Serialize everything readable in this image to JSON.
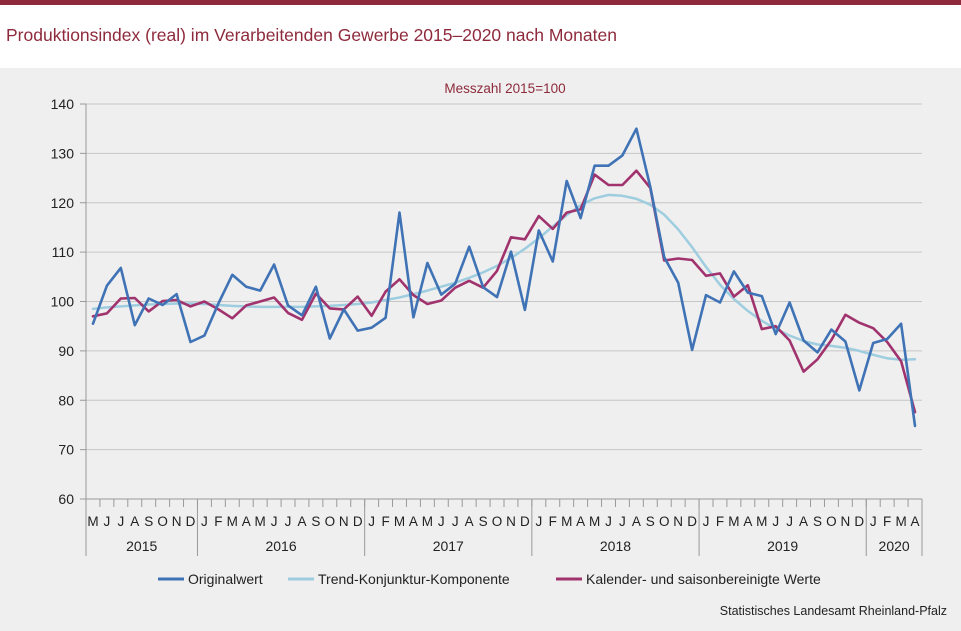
{
  "title": "Produktionsindex (real) im Verarbeitenden Gewerbe 2015–2020 nach Monaten",
  "source": "Statistisches Landesamt Rheinland-Pfalz",
  "colors": {
    "accent": "#8e2a3c",
    "original": "#3f73b5",
    "trend": "#9fcde0",
    "seasonal": "#a0336e"
  },
  "chart_data": {
    "type": "line",
    "subtitle": "Messzahl 2015=100",
    "ylim": [
      60,
      140
    ],
    "yticks": [
      60,
      70,
      80,
      90,
      100,
      110,
      120,
      130,
      140
    ],
    "grid": true,
    "legend": "bottom",
    "month_labels": [
      "M",
      "J",
      "J",
      "A",
      "S",
      "O",
      "N",
      "D",
      "J",
      "F",
      "M",
      "A",
      "M",
      "J",
      "J",
      "A",
      "S",
      "O",
      "N",
      "D",
      "J",
      "F",
      "M",
      "A",
      "M",
      "J",
      "J",
      "A",
      "S",
      "O",
      "N",
      "D",
      "J",
      "F",
      "M",
      "A",
      "M",
      "J",
      "J",
      "A",
      "S",
      "O",
      "N",
      "D",
      "J",
      "F",
      "M",
      "A",
      "M",
      "J",
      "J",
      "A",
      "S",
      "O",
      "N",
      "D",
      "J",
      "F",
      "M",
      "A"
    ],
    "years": [
      {
        "label": "2015",
        "start": 0,
        "count": 8
      },
      {
        "label": "2016",
        "start": 8,
        "count": 12
      },
      {
        "label": "2017",
        "start": 20,
        "count": 12
      },
      {
        "label": "2018",
        "start": 32,
        "count": 12
      },
      {
        "label": "2019",
        "start": 44,
        "count": 12
      },
      {
        "label": "2020",
        "start": 56,
        "count": 4
      }
    ],
    "series": [
      {
        "name": "Originalwert",
        "color": "#3f73b5",
        "values": [
          95.5,
          103.2,
          106.8,
          95.2,
          100.6,
          99.3,
          101.5,
          91.8,
          93.1,
          99.6,
          105.4,
          103.0,
          102.2,
          107.5,
          99.2,
          97.2,
          103.0,
          92.5,
          98.4,
          94.1,
          94.7,
          96.7,
          118.0,
          96.8,
          107.8,
          101.4,
          103.6,
          111.1,
          102.9,
          100.9,
          110.1,
          98.3,
          114.4,
          108.1,
          124.4,
          116.9,
          127.5,
          127.5,
          129.6,
          135.0,
          123.2,
          109.0,
          103.8,
          90.2,
          101.3,
          99.8,
          106.1,
          101.8,
          101.1,
          93.4,
          99.8,
          92.1,
          89.7,
          94.3,
          91.9,
          82.0,
          91.6,
          92.4,
          95.5,
          74.8
        ]
      },
      {
        "name": "Trend-Konjunktur-Komponente",
        "color": "#9fcde0",
        "values": [
          98.5,
          98.8,
          99.0,
          99.2,
          99.4,
          99.5,
          99.6,
          99.6,
          99.5,
          99.3,
          99.1,
          99.0,
          98.9,
          98.9,
          98.9,
          98.9,
          99.0,
          99.1,
          99.3,
          99.5,
          99.8,
          100.3,
          100.8,
          101.5,
          102.2,
          103.0,
          103.8,
          104.8,
          105.9,
          107.2,
          108.8,
          110.7,
          112.8,
          115.2,
          117.5,
          119.5,
          120.9,
          121.6,
          121.4,
          120.8,
          119.6,
          117.6,
          114.6,
          111.0,
          107.0,
          103.4,
          100.5,
          98.1,
          96.1,
          94.5,
          93.1,
          92.0,
          91.3,
          91.0,
          90.6,
          90.0,
          89.2,
          88.5,
          88.2,
          88.3
        ]
      },
      {
        "name": "Kalender- und saisonbereinigte Werte",
        "color": "#a0336e",
        "values": [
          97.0,
          97.6,
          100.6,
          100.7,
          98.0,
          100.1,
          100.3,
          99.0,
          100.0,
          98.4,
          96.6,
          99.2,
          100.0,
          100.8,
          97.7,
          96.3,
          101.6,
          98.6,
          98.4,
          101.0,
          97.1,
          102.0,
          104.5,
          101.3,
          99.5,
          100.2,
          102.8,
          104.2,
          102.8,
          106.2,
          113.0,
          112.6,
          117.3,
          114.7,
          118.0,
          118.7,
          125.7,
          123.6,
          123.6,
          126.5,
          123.0,
          108.3,
          108.7,
          108.4,
          105.2,
          105.7,
          101.0,
          103.3,
          94.4,
          95.0,
          92.1,
          85.8,
          88.3,
          92.2,
          97.3,
          95.7,
          94.6,
          91.8,
          87.9,
          77.6
        ]
      }
    ]
  }
}
